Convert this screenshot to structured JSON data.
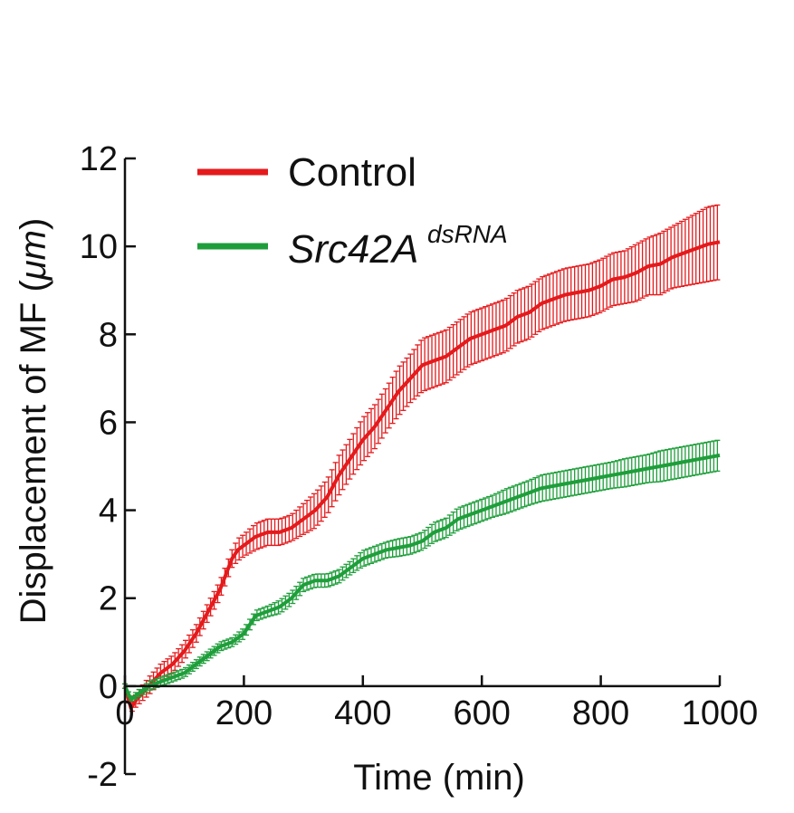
{
  "chart_data": {
    "type": "line",
    "xlabel": "Time (min)",
    "ylabel_prefix": "Displacement of MF (",
    "ylabel_unit": "μm",
    "ylabel_suffix": ")",
    "xlim": [
      0,
      1000
    ],
    "ylim": [
      -2,
      12
    ],
    "xticks": [
      0,
      200,
      400,
      600,
      800,
      1000
    ],
    "xtick_labels": [
      "0",
      "200",
      "400",
      "600",
      "800",
      "1000"
    ],
    "yticks": [
      -2,
      0,
      2,
      4,
      6,
      8,
      10,
      12
    ],
    "ytick_labels": [
      "-2",
      "0",
      "2",
      "4",
      "6",
      "8",
      "10",
      "12"
    ],
    "grid": false,
    "legend_position": "top-left",
    "series": [
      {
        "name": "Control",
        "legend_main": "Control",
        "legend_sup": "",
        "color": "#e41a1c",
        "x": [
          0,
          10,
          20,
          40,
          60,
          80,
          100,
          120,
          140,
          160,
          180,
          190,
          200,
          220,
          240,
          260,
          280,
          300,
          320,
          340,
          360,
          380,
          400,
          420,
          440,
          460,
          480,
          500,
          520,
          540,
          560,
          580,
          600,
          620,
          640,
          660,
          680,
          700,
          720,
          740,
          760,
          780,
          800,
          820,
          840,
          860,
          880,
          900,
          920,
          940,
          960,
          980,
          1000
        ],
        "y": [
          0.0,
          -0.5,
          -0.3,
          0.0,
          0.3,
          0.5,
          0.8,
          1.2,
          1.7,
          2.2,
          2.9,
          3.1,
          3.2,
          3.4,
          3.5,
          3.5,
          3.6,
          3.8,
          4.0,
          4.3,
          4.8,
          5.2,
          5.6,
          5.9,
          6.3,
          6.7,
          7.0,
          7.3,
          7.4,
          7.5,
          7.7,
          7.9,
          8.0,
          8.1,
          8.2,
          8.4,
          8.5,
          8.7,
          8.8,
          8.9,
          8.95,
          9.0,
          9.1,
          9.25,
          9.3,
          9.4,
          9.55,
          9.6,
          9.75,
          9.85,
          9.95,
          10.05,
          10.1
        ],
        "err": [
          0.05,
          0.1,
          0.15,
          0.2,
          0.2,
          0.2,
          0.2,
          0.2,
          0.2,
          0.2,
          0.2,
          0.25,
          0.25,
          0.3,
          0.3,
          0.3,
          0.3,
          0.35,
          0.4,
          0.4,
          0.45,
          0.45,
          0.5,
          0.5,
          0.5,
          0.55,
          0.55,
          0.6,
          0.6,
          0.6,
          0.6,
          0.6,
          0.6,
          0.6,
          0.6,
          0.6,
          0.6,
          0.6,
          0.6,
          0.6,
          0.6,
          0.6,
          0.6,
          0.6,
          0.6,
          0.65,
          0.65,
          0.7,
          0.7,
          0.75,
          0.8,
          0.85,
          0.85
        ]
      },
      {
        "name": "Src42A dsRNA",
        "legend_main": "Src42A",
        "legend_sup": "dsRNA",
        "color": "#1e9e3a",
        "x": [
          0,
          10,
          20,
          40,
          60,
          80,
          100,
          120,
          140,
          160,
          180,
          200,
          220,
          240,
          260,
          280,
          300,
          320,
          340,
          360,
          380,
          400,
          420,
          440,
          460,
          480,
          500,
          520,
          540,
          560,
          580,
          600,
          620,
          640,
          660,
          680,
          700,
          720,
          740,
          760,
          780,
          800,
          820,
          840,
          860,
          880,
          900,
          920,
          940,
          960,
          980,
          1000
        ],
        "y": [
          0.0,
          -0.3,
          -0.2,
          0.0,
          0.1,
          0.2,
          0.3,
          0.5,
          0.7,
          0.9,
          1.0,
          1.2,
          1.6,
          1.7,
          1.8,
          2.0,
          2.3,
          2.4,
          2.4,
          2.5,
          2.7,
          2.9,
          3.0,
          3.1,
          3.15,
          3.2,
          3.3,
          3.5,
          3.6,
          3.8,
          3.9,
          4.0,
          4.1,
          4.2,
          4.3,
          4.4,
          4.5,
          4.55,
          4.6,
          4.65,
          4.7,
          4.75,
          4.8,
          4.85,
          4.9,
          4.95,
          5.0,
          5.05,
          5.1,
          5.15,
          5.2,
          5.25
        ],
        "err": [
          0.05,
          0.05,
          0.08,
          0.1,
          0.1,
          0.1,
          0.1,
          0.1,
          0.1,
          0.1,
          0.1,
          0.12,
          0.12,
          0.12,
          0.15,
          0.15,
          0.15,
          0.15,
          0.15,
          0.15,
          0.15,
          0.18,
          0.18,
          0.18,
          0.2,
          0.2,
          0.2,
          0.22,
          0.22,
          0.25,
          0.25,
          0.25,
          0.25,
          0.28,
          0.28,
          0.28,
          0.3,
          0.3,
          0.3,
          0.3,
          0.3,
          0.3,
          0.3,
          0.32,
          0.32,
          0.32,
          0.35,
          0.35,
          0.35,
          0.35,
          0.35,
          0.35
        ]
      }
    ]
  }
}
